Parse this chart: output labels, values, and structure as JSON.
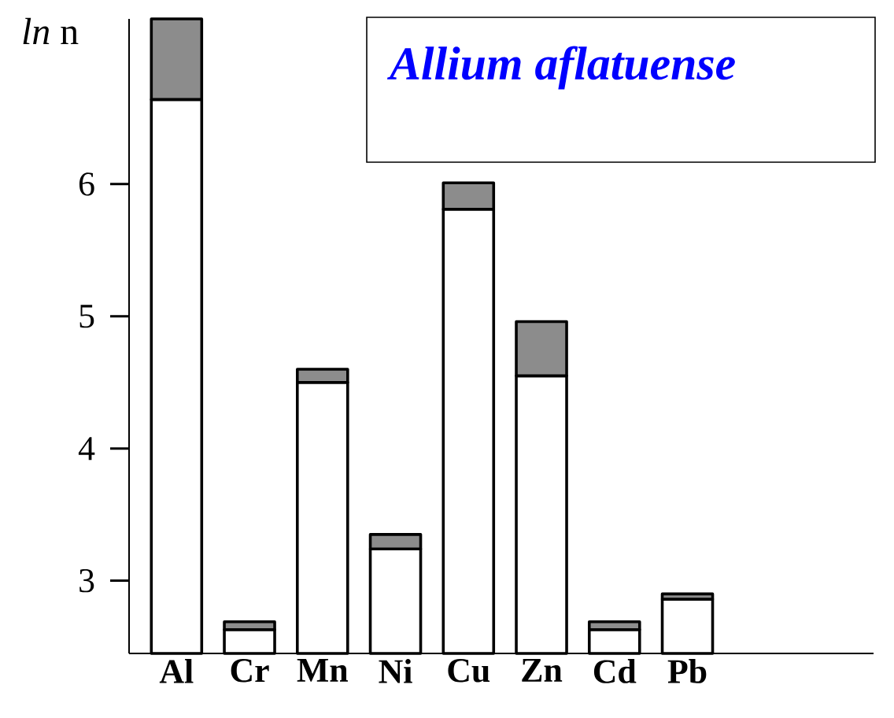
{
  "chart_data": {
    "type": "bar",
    "title": "Allium aflatuense",
    "ylabel": "*ln* n",
    "categories": [
      "Al",
      "Cr",
      "Mn",
      "Ni",
      "Cu",
      "Zn",
      "Cd",
      "Pb"
    ],
    "series": [
      {
        "color": "#ffffff",
        "base": [
          2.45,
          2.45,
          2.45,
          2.45,
          2.45,
          2.45,
          2.45,
          2.45
        ],
        "values": [
          4.19,
          0.18,
          2.05,
          0.79,
          3.36,
          2.1,
          0.18,
          0.41
        ]
      },
      {
        "color": "#8c8c8c",
        "base": [
          6.64,
          2.63,
          4.5,
          3.24,
          5.81,
          4.55,
          2.63,
          2.86
        ],
        "values": [
          0.61,
          0.06,
          0.1,
          0.11,
          0.2,
          0.41,
          0.06,
          0.04
        ]
      }
    ],
    "ylim": [
      2.45,
      7.25
    ],
    "yticks": [
      3,
      4,
      5,
      6
    ],
    "grid": false
  }
}
